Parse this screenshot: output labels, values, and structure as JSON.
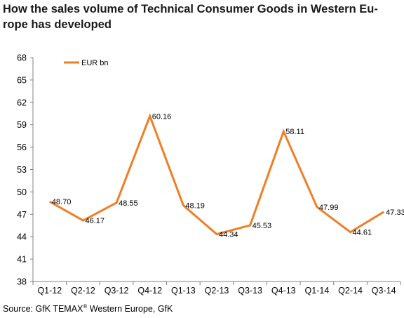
{
  "title_lines": [
    "How the sales volume of Technical Consumer Goods in Western Eu-",
    "rope has developed"
  ],
  "source": {
    "prefix": "Source: GfK TEMAX",
    "sup": "®",
    "suffix": " Western Europe, GfK"
  },
  "colors": {
    "series": "#F07E26",
    "axis": "#808080"
  },
  "chart_data": {
    "type": "line",
    "title": "How the sales volume of Technical Consumer Goods in Western Europe has developed",
    "xlabel": "",
    "ylabel": "",
    "ylim": [
      38,
      68
    ],
    "yticks": [
      38,
      41,
      44,
      47,
      50,
      53,
      56,
      59,
      62,
      65,
      68
    ],
    "grid": false,
    "legend_position": "top-left",
    "categories": [
      "Q1-12",
      "Q2-12",
      "Q3-12",
      "Q4-12",
      "Q1-13",
      "Q2-13",
      "Q3-13",
      "Q4-13",
      "Q1-14",
      "Q2-14",
      "Q3-14"
    ],
    "series": [
      {
        "name": "EUR bn",
        "values": [
          48.7,
          46.17,
          48.55,
          60.16,
          48.19,
          44.34,
          45.53,
          58.11,
          47.99,
          44.61,
          47.33
        ],
        "labels": [
          "48.70",
          "46.17",
          "48.55",
          "60.16",
          "48.19",
          "44.34",
          "45.53",
          "58.11",
          "47.99",
          "44.61",
          "47.33"
        ]
      }
    ]
  }
}
